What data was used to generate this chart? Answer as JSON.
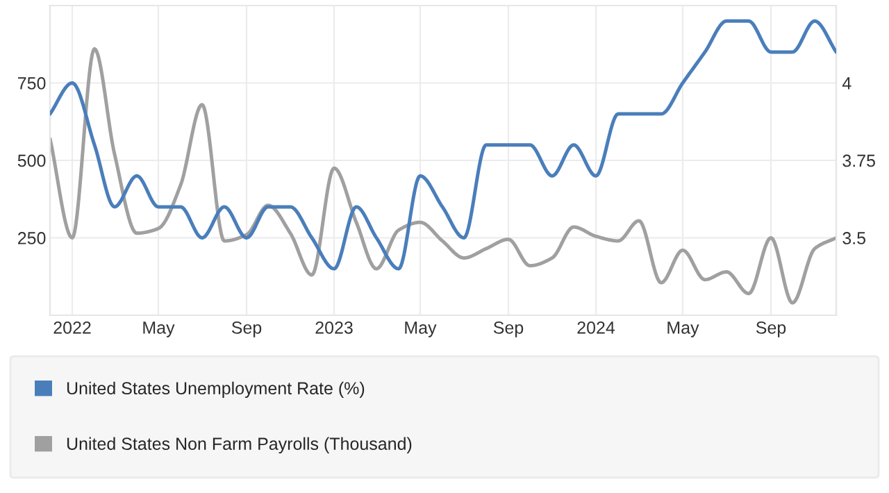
{
  "chart_data": {
    "type": "line",
    "x": [
      "2021-12",
      "2022-01",
      "2022-02",
      "2022-03",
      "2022-04",
      "2022-05",
      "2022-06",
      "2022-07",
      "2022-08",
      "2022-09",
      "2022-10",
      "2022-11",
      "2022-12",
      "2023-01",
      "2023-02",
      "2023-03",
      "2023-04",
      "2023-05",
      "2023-06",
      "2023-07",
      "2023-08",
      "2023-09",
      "2023-10",
      "2023-11",
      "2023-12",
      "2024-01",
      "2024-02",
      "2024-03",
      "2024-04",
      "2024-05",
      "2024-06",
      "2024-07",
      "2024-08",
      "2024-09",
      "2024-10",
      "2024-11",
      "2024-12"
    ],
    "series": [
      {
        "name": "United States Unemployment Rate (%)",
        "color": "#4a7ebb",
        "axis": "y2",
        "values": [
          3.9,
          4.0,
          3.8,
          3.6,
          3.7,
          3.6,
          3.6,
          3.5,
          3.6,
          3.5,
          3.6,
          3.6,
          3.5,
          3.4,
          3.6,
          3.5,
          3.4,
          3.7,
          3.6,
          3.5,
          3.8,
          3.8,
          3.8,
          3.7,
          3.8,
          3.7,
          3.9,
          3.9,
          3.9,
          4.0,
          4.1,
          4.2,
          4.2,
          4.1,
          4.1,
          4.2,
          4.1
        ]
      },
      {
        "name": "United States Non Farm Payrolls (Thousand)",
        "color": "#a0a0a0",
        "values": [
          570,
          250,
          860,
          520,
          265,
          280,
          420,
          680,
          240,
          260,
          355,
          265,
          130,
          475,
          300,
          150,
          275,
          300,
          240,
          185,
          215,
          245,
          160,
          185,
          285,
          255,
          240,
          305,
          105,
          210,
          115,
          140,
          70,
          250,
          40,
          215,
          250
        ]
      }
    ],
    "xlim": [
      "2021-12",
      "2024-12"
    ],
    "xticks": [
      {
        "value": "2022-01",
        "label": "2022"
      },
      {
        "value": "2022-05",
        "label": "May"
      },
      {
        "value": "2022-09",
        "label": "Sep"
      },
      {
        "value": "2023-01",
        "label": "2023"
      },
      {
        "value": "2023-05",
        "label": "May"
      },
      {
        "value": "2023-09",
        "label": "Sep"
      },
      {
        "value": "2024-01",
        "label": "2024"
      },
      {
        "value": "2024-05",
        "label": "May"
      },
      {
        "value": "2024-09",
        "label": "Sep"
      }
    ],
    "ylim": [
      0,
      1000
    ],
    "yticks": [
      250,
      500,
      750
    ],
    "y2lim": [
      3.25,
      4.25
    ],
    "y2ticks": [
      3.5,
      3.75,
      4
    ],
    "grid": true,
    "legend": "bottom",
    "line_style": "solid"
  }
}
